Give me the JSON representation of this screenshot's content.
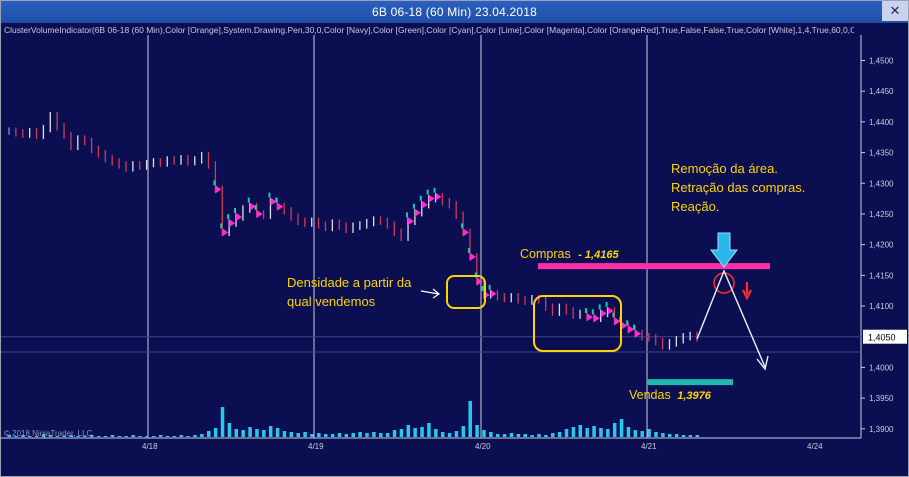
{
  "window": {
    "title": "6B 06-18 (60 Min)  23.04.2018",
    "close_label": "✕"
  },
  "indicator_text": "ClusterVolumeIndicator(6B 06-18 (60 Min),Color [Orange],System.Drawing.Pen,30,0,Color [Navy],Color [Green],Color [Cyan],Color [Lime],Color [Magenta],Color [OrangeRed],True,False,False,True,Color [White],1,4,True,60,0,Color [Bl",
  "copyright": "© 2018 NinjaTrader, LLC",
  "annotations": {
    "density": [
      "Densidade a partir da",
      "qual vendemos"
    ],
    "removal": [
      "Remoção da área.",
      "Retração das compras.",
      "Reação."
    ],
    "compras_label": "Compras",
    "compras_value": "- 1,4165",
    "vendas_label": "Vendas",
    "vendas_value": "1,3976"
  },
  "axis": {
    "y_ticks": [
      "1,4500",
      "1,4450",
      "1,4400",
      "1,4350",
      "1,4300",
      "1,4250",
      "1,4200",
      "1,4150",
      "1,4100",
      "1,4000",
      "1,3950",
      "1,3900"
    ],
    "current_price": "1,4050",
    "x_ticks": [
      "4/18",
      "4/19",
      "4/20",
      "4/21",
      "4/24"
    ]
  },
  "colors": {
    "background": "#0b0f52",
    "compras_line": "#ff2ea6",
    "vendas_line": "#22b8b0",
    "arrow_down": "#29b6e8",
    "annotation_text": "#ffd400",
    "volume_bar": "#28c8ee"
  },
  "chart_data": {
    "type": "bar",
    "description_series": "OHLC 60-minute bars, GBP futures 6B 06-18",
    "y_range": [
      1.3885,
      1.4535
    ],
    "levels": {
      "compras": 1.4165,
      "vendas": 1.3976,
      "current": 1.405
    },
    "closes": [
      1.4385,
      1.4382,
      1.438,
      1.4384,
      1.4378,
      1.4389,
      1.441,
      1.4392,
      1.4378,
      1.436,
      1.4372,
      1.4368,
      1.4355,
      1.4348,
      1.434,
      1.4335,
      1.433,
      1.4325,
      1.433,
      1.4328,
      1.4332,
      1.4335,
      1.4333,
      1.4338,
      1.4336,
      1.434,
      1.4335,
      1.4338,
      1.4345,
      1.433,
      1.429,
      1.422,
      1.4235,
      1.4245,
      1.4258,
      1.4262,
      1.425,
      1.4248,
      1.427,
      1.4262,
      1.4255,
      1.4245,
      1.4238,
      1.4235,
      1.4238,
      1.4232,
      1.4228,
      1.4235,
      1.423,
      1.4225,
      1.423,
      1.4232,
      1.4236,
      1.424,
      1.4238,
      1.4232,
      1.422,
      1.4212,
      1.4238,
      1.4252,
      1.4265,
      1.4275,
      1.4278,
      1.427,
      1.4265,
      1.4248,
      1.422,
      1.418,
      1.414,
      1.4118,
      1.412,
      1.4115,
      1.4112,
      1.4115,
      1.411,
      1.4108,
      1.4112,
      1.411,
      1.4098,
      1.409,
      1.4098,
      1.4092,
      1.4085,
      1.4088,
      1.4082,
      1.408,
      1.4088,
      1.4092,
      1.4075,
      1.4068,
      1.4062,
      1.4055,
      1.405,
      1.4048,
      1.4042,
      1.4035,
      1.404,
      1.4045,
      1.405,
      1.4052,
      1.4048
    ],
    "volume": [
      2,
      1,
      2,
      1,
      1,
      3,
      2,
      1,
      1,
      2,
      1,
      1,
      2,
      1,
      1,
      2,
      1,
      1,
      2,
      1,
      1,
      1,
      2,
      1,
      1,
      2,
      1,
      2,
      3,
      6,
      9,
      30,
      14,
      8,
      7,
      10,
      8,
      7,
      11,
      9,
      6,
      5,
      4,
      5,
      3,
      4,
      3,
      3,
      4,
      3,
      4,
      5,
      4,
      5,
      4,
      4,
      7,
      8,
      12,
      9,
      10,
      14,
      8,
      5,
      4,
      6,
      11,
      36,
      12,
      7,
      5,
      3,
      3,
      4,
      3,
      3,
      2,
      3,
      2,
      4,
      5,
      8,
      10,
      12,
      9,
      11,
      9,
      8,
      14,
      18,
      10,
      7,
      6,
      8,
      5,
      4,
      3,
      3,
      2,
      2,
      2
    ],
    "dates": [
      "4/18",
      "4/19",
      "4/20",
      "4/21",
      "4/24"
    ]
  }
}
